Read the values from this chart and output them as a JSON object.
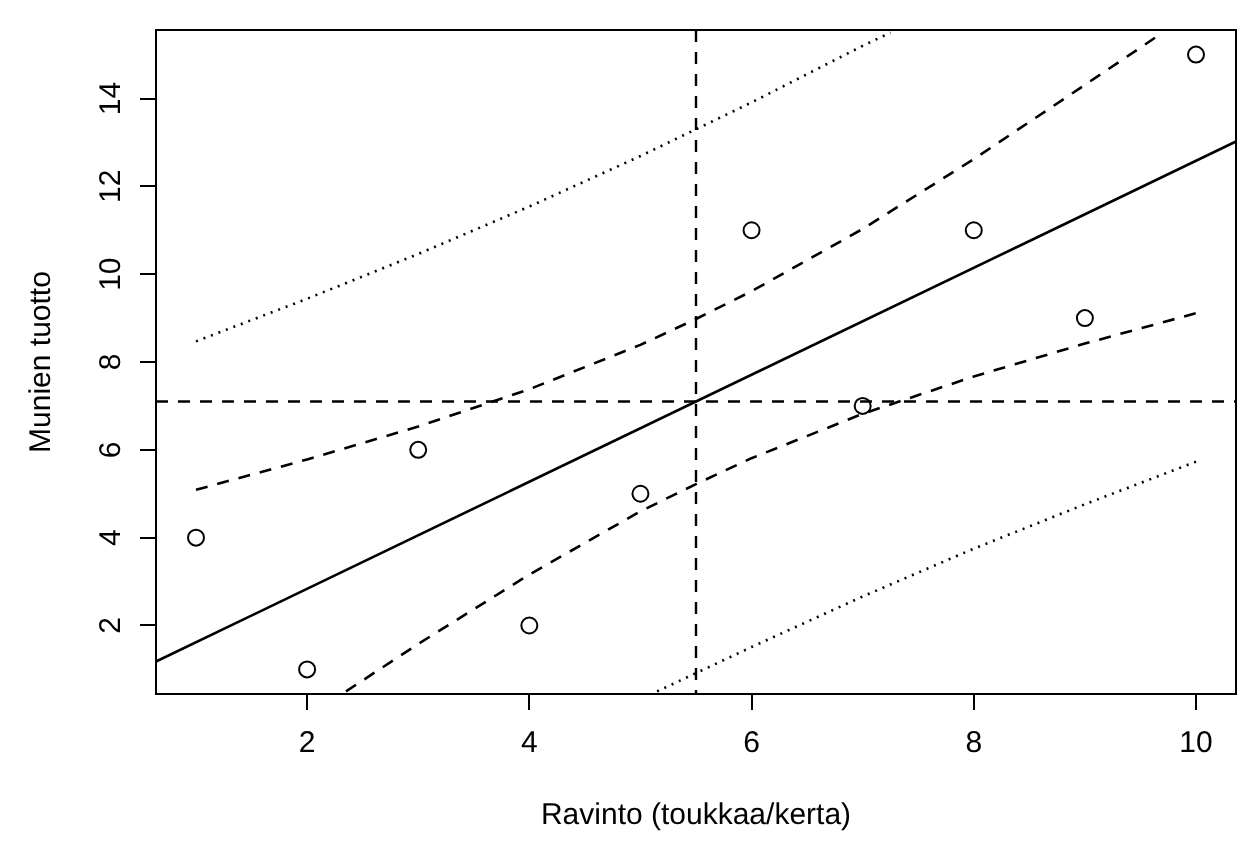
{
  "chart_data": {
    "type": "scatter",
    "xlabel": "Ravinto (toukkaa/kerta)",
    "ylabel": "Munien tuotto",
    "xlim": [
      0.64,
      10.36
    ],
    "ylim": [
      0.44,
      15.56
    ],
    "xticks": [
      2,
      4,
      6,
      8,
      10
    ],
    "yticks": [
      2,
      4,
      6,
      8,
      10,
      12,
      14
    ],
    "grid": false,
    "legend": false,
    "series": [
      {
        "type": "scatter",
        "color": "#000000",
        "marker": "circle",
        "x": [
          1,
          2,
          3,
          4,
          5,
          6,
          7,
          8,
          9,
          10
        ],
        "values": [
          4,
          1,
          6,
          2,
          5,
          11,
          7,
          11,
          9,
          15
        ]
      },
      {
        "type": "line",
        "color": "#000000",
        "marker": "none",
        "line_style": "solid",
        "x": [
          0.64,
          10.36
        ],
        "values": [
          1.18,
          13.02
        ]
      },
      {
        "type": "line",
        "color": "#000000",
        "marker": "none",
        "line_style": "dashed",
        "x": [
          1,
          2,
          3,
          4,
          5,
          5.5,
          6,
          7,
          8,
          9,
          9.7
        ],
        "values": [
          5.09,
          5.78,
          6.53,
          7.38,
          8.39,
          8.98,
          9.61,
          11.03,
          12.62,
          14.31,
          15.5
        ]
      },
      {
        "type": "line",
        "color": "#000000",
        "marker": "none",
        "line_style": "dashed",
        "x": [
          2.35,
          3,
          4,
          5,
          5.5,
          6,
          7,
          8,
          9,
          10
        ],
        "values": [
          0.5,
          1.58,
          3.16,
          4.6,
          5.22,
          5.81,
          6.82,
          7.67,
          8.42,
          9.11
        ]
      },
      {
        "type": "line",
        "color": "#000000",
        "marker": "none",
        "line_style": "dotted",
        "x": [
          1,
          2,
          3,
          4,
          5,
          5.5,
          6,
          7,
          7.25
        ],
        "values": [
          8.47,
          9.44,
          10.46,
          11.54,
          12.69,
          13.3,
          13.91,
          15.2,
          15.5
        ]
      },
      {
        "type": "line",
        "color": "#000000",
        "marker": "none",
        "line_style": "dotted",
        "x": [
          5.15,
          6,
          7,
          8,
          9,
          10
        ],
        "values": [
          0.5,
          1.51,
          2.66,
          3.75,
          4.76,
          5.73
        ]
      }
    ],
    "ref_lines": [
      {
        "axis": "x",
        "value": 5.5,
        "line_style": "dashed",
        "color": "#000000"
      },
      {
        "axis": "y",
        "value": 7.1,
        "line_style": "dashed",
        "color": "#000000"
      }
    ]
  }
}
